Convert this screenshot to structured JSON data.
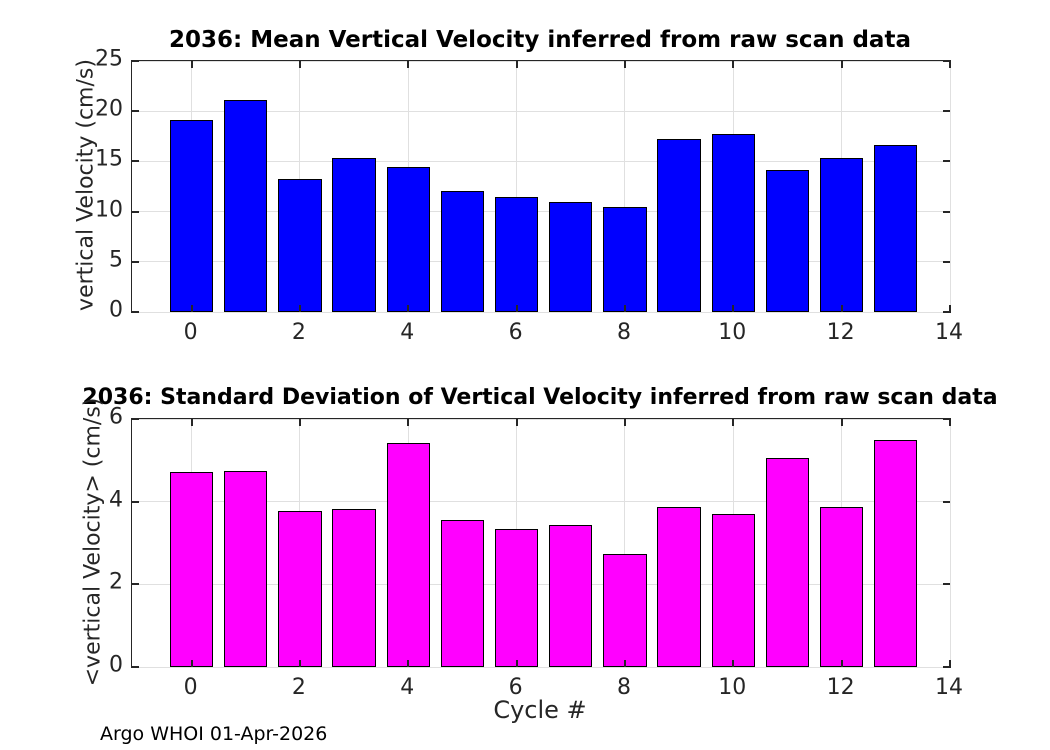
{
  "figure": {
    "footer": "Argo WHOI 01-Apr-2026",
    "background": "#FFFFFF"
  },
  "colors": {
    "bar_blue": "#0000FF",
    "bar_magenta": "#FF00FF",
    "grid": "#E0E0E0",
    "axis": "#262626",
    "tick_label": "#262626",
    "title": "#000000"
  },
  "chart_data": [
    {
      "type": "bar",
      "title": "2036: Mean Vertical Velocity inferred from raw scan data",
      "xlabel": "",
      "ylabel": "vertical Velocity (cm/s)",
      "categories": [
        0,
        1,
        2,
        3,
        4,
        5,
        6,
        7,
        8,
        9,
        10,
        11,
        12,
        13
      ],
      "values": [
        19.1,
        21.1,
        13.2,
        15.3,
        14.4,
        12.1,
        11.5,
        11.0,
        10.5,
        17.2,
        17.7,
        14.1,
        15.3,
        16.6
      ],
      "bar_color": "#0000FF",
      "bar_edge_color": "#000000",
      "bar_width": 0.8,
      "xlim": [
        -1.1,
        14
      ],
      "ylim": [
        0,
        25
      ],
      "xticks": [
        0,
        2,
        4,
        6,
        8,
        10,
        12,
        14
      ],
      "yticks": [
        0,
        5,
        10,
        15,
        20,
        25
      ],
      "grid": true,
      "legend": "none"
    },
    {
      "type": "bar",
      "title": "2036: Standard Deviation of Vertical Velocity inferred from raw scan data",
      "xlabel": "Cycle #",
      "ylabel": "<vertical Velocity> (cm/s)",
      "categories": [
        0,
        1,
        2,
        3,
        4,
        5,
        6,
        7,
        8,
        9,
        10,
        11,
        12,
        13
      ],
      "values": [
        4.71,
        4.73,
        3.78,
        3.83,
        5.43,
        3.56,
        3.34,
        3.44,
        2.73,
        3.86,
        3.69,
        5.05,
        3.86,
        5.49
      ],
      "bar_color": "#FF00FF",
      "bar_edge_color": "#000000",
      "bar_width": 0.8,
      "xlim": [
        -1.1,
        14
      ],
      "ylim": [
        0,
        6
      ],
      "xticks": [
        0,
        2,
        4,
        6,
        8,
        10,
        12,
        14
      ],
      "yticks": [
        0,
        2,
        4,
        6
      ],
      "grid": true,
      "legend": "none"
    }
  ]
}
